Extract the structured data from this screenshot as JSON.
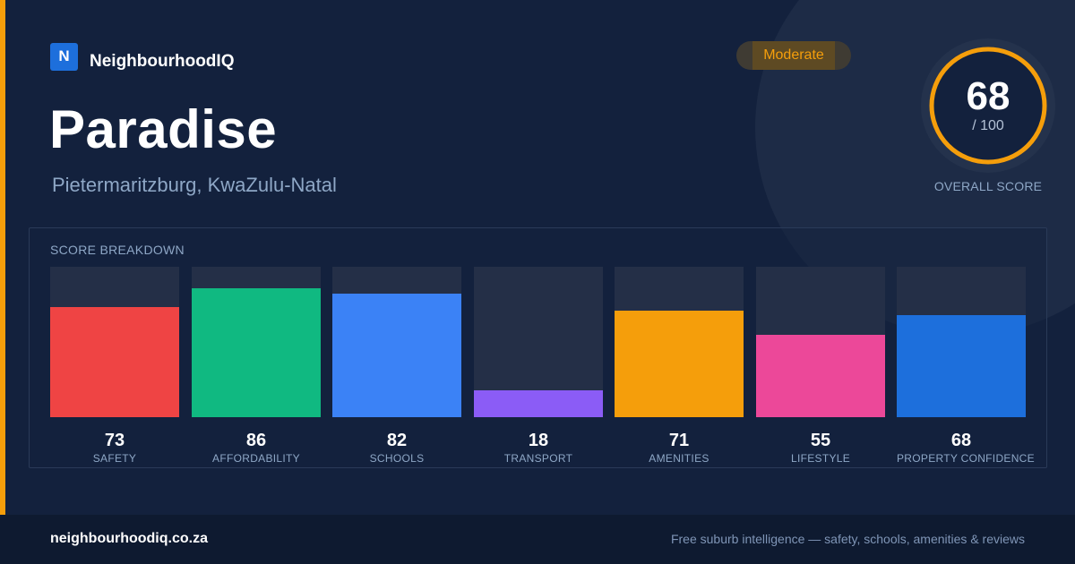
{
  "brand": {
    "logo_letter": "N",
    "name": "NeighbourhoodIQ"
  },
  "badge": {
    "label": "Moderate",
    "color": "#f59e0b"
  },
  "suburb": {
    "name": "Paradise",
    "location": "Pietermaritzburg, KwaZulu-Natal"
  },
  "overall": {
    "score": "68",
    "max": "/ 100",
    "caption": "OVERALL SCORE",
    "fraction": 0.68,
    "ring_color": "#f59e0b"
  },
  "breakdown": {
    "title": "SCORE BREAKDOWN",
    "items": [
      {
        "label": "SAFETY",
        "value": "73",
        "score": 73,
        "color": "#ef4444"
      },
      {
        "label": "AFFORDABILITY",
        "value": "86",
        "score": 86,
        "color": "#10b981"
      },
      {
        "label": "SCHOOLS",
        "value": "82",
        "score": 82,
        "color": "#3b82f6"
      },
      {
        "label": "TRANSPORT",
        "value": "18",
        "score": 18,
        "color": "#8b5cf6"
      },
      {
        "label": "AMENITIES",
        "value": "71",
        "score": 71,
        "color": "#f59e0b"
      },
      {
        "label": "LIFESTYLE",
        "value": "55",
        "score": 55,
        "color": "#ec4899"
      },
      {
        "label": "PROPERTY CONFIDENCE",
        "value": "68",
        "score": 68,
        "color": "#1d6fdc"
      }
    ]
  },
  "footer": {
    "url": "neighbourhoodiq.co.za",
    "tagline": "Free suburb intelligence — safety, schools, amenities & reviews"
  }
}
